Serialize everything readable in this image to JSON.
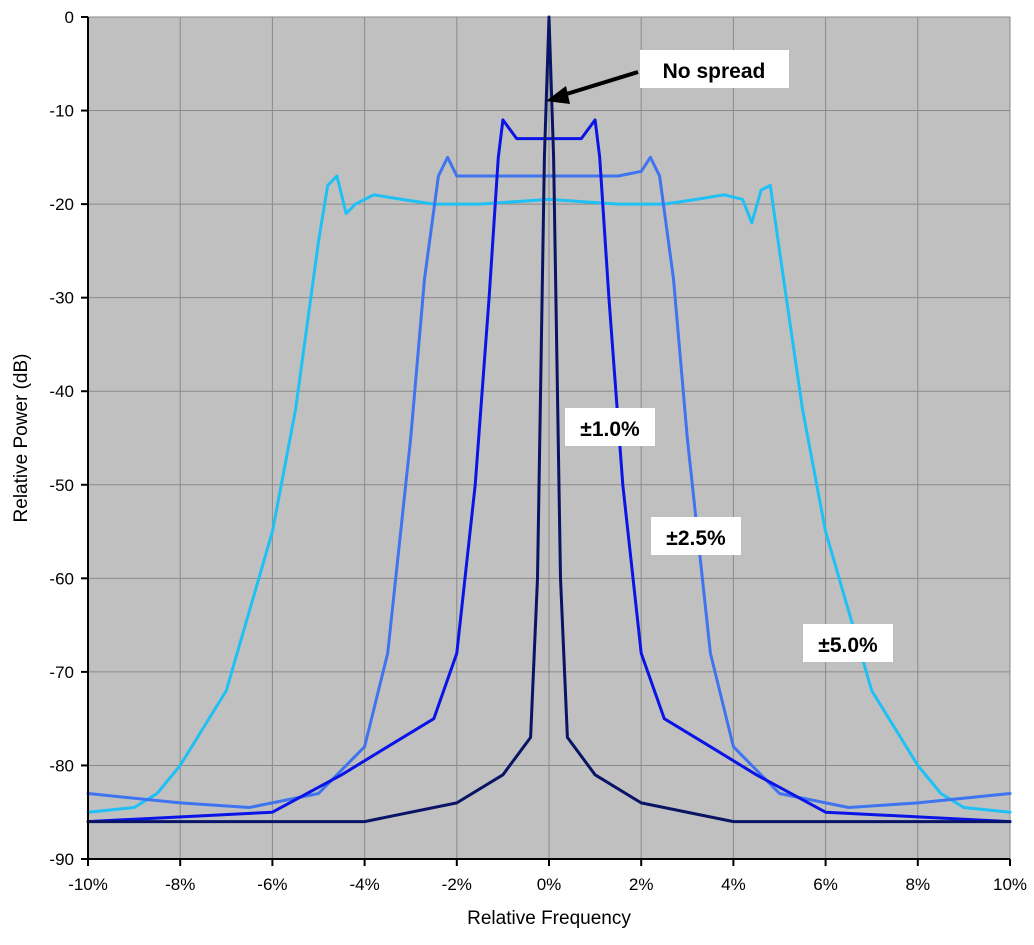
{
  "chart_data": {
    "type": "line",
    "title": "",
    "xlabel": "Relative Frequency",
    "ylabel": "Relative Power (dB)",
    "xlim": [
      -10,
      10
    ],
    "ylim": [
      -90,
      0
    ],
    "x_ticks": [
      -10,
      -8,
      -6,
      -4,
      -2,
      0,
      2,
      4,
      6,
      8,
      10
    ],
    "x_tick_labels": [
      "-10%",
      "-8%",
      "-6%",
      "-4%",
      "-2%",
      "0%",
      "2%",
      "4%",
      "6%",
      "8%",
      "10%"
    ],
    "y_ticks": [
      0,
      -10,
      -20,
      -30,
      -40,
      -50,
      -60,
      -70,
      -80,
      -90
    ],
    "y_tick_labels": [
      "0",
      "-10",
      "-20",
      "-30",
      "-40",
      "-50",
      "-60",
      "-70",
      "-80",
      "-90"
    ],
    "grid": true,
    "plot_background": "#c0c0c0",
    "series": [
      {
        "color": "#1ec0f5",
        "x": [
          -10,
          -9,
          -8.5,
          -8,
          -7,
          -6,
          -5.5,
          -5,
          -4.8,
          -4.6,
          -4.4,
          -4.2,
          -3.8,
          -3.2,
          -2.5,
          -1.5,
          0,
          1.5,
          2.5,
          3.2,
          3.8,
          4.2,
          4.4,
          4.6,
          4.8,
          5,
          5.5,
          6,
          7,
          8,
          8.5,
          9,
          10
        ],
        "y": [
          -85,
          -84.5,
          -83,
          -80,
          -72,
          -55,
          -42,
          -24,
          -18,
          -17,
          -21,
          -20,
          -19,
          -19.5,
          -20,
          -20,
          -19.5,
          -20,
          -20,
          -19.5,
          -19,
          -19.5,
          -22,
          -18.5,
          -18,
          -25,
          -42,
          -55,
          -72,
          -80,
          -83,
          -84.5,
          -85
        ]
      },
      {
        "color": "#3f74f0",
        "x": [
          -10,
          -8,
          -6.5,
          -5,
          -4,
          -3.5,
          -3,
          -2.7,
          -2.4,
          -2.2,
          -2,
          -1.5,
          -1,
          0,
          1,
          1.5,
          2,
          2.2,
          2.4,
          2.7,
          3,
          3.5,
          4,
          5,
          6.5,
          8,
          10
        ],
        "y": [
          -83,
          -84,
          -84.5,
          -83,
          -78,
          -68,
          -45,
          -28,
          -17,
          -15,
          -17,
          -17,
          -17,
          -17,
          -17,
          -17,
          -16.5,
          -15,
          -17,
          -28,
          -45,
          -68,
          -78,
          -83,
          -84.5,
          -84,
          -83
        ]
      },
      {
        "color": "#0a14e6",
        "x": [
          -10,
          -6,
          -4.5,
          -3.5,
          -2.5,
          -2,
          -1.6,
          -1.3,
          -1.1,
          -1,
          -0.7,
          -0.4,
          0,
          0.4,
          0.7,
          1,
          1.1,
          1.3,
          1.6,
          2,
          2.5,
          3.5,
          4.5,
          6,
          10
        ],
        "y": [
          -86,
          -85,
          -81,
          -78,
          -75,
          -68,
          -50,
          -30,
          -15,
          -11,
          -13,
          -13,
          -13,
          -13,
          -13,
          -11,
          -15,
          -30,
          -50,
          -68,
          -75,
          -78,
          -81,
          -85,
          -86
        ]
      },
      {
        "color": "#0a1464",
        "x": [
          -10,
          -4,
          -2,
          -1,
          -0.4,
          -0.25,
          -0.1,
          0,
          0.1,
          0.25,
          0.4,
          1,
          2,
          4,
          10
        ],
        "y": [
          -86,
          -86,
          -84,
          -81,
          -77,
          -60,
          -15,
          0,
          -15,
          -60,
          -77,
          -81,
          -84,
          -86,
          -86
        ]
      }
    ],
    "annotations": [
      {
        "text": "No spread"
      },
      {
        "text": "±1.0%"
      },
      {
        "text": "±2.5%"
      },
      {
        "text": "±5.0%"
      }
    ]
  }
}
